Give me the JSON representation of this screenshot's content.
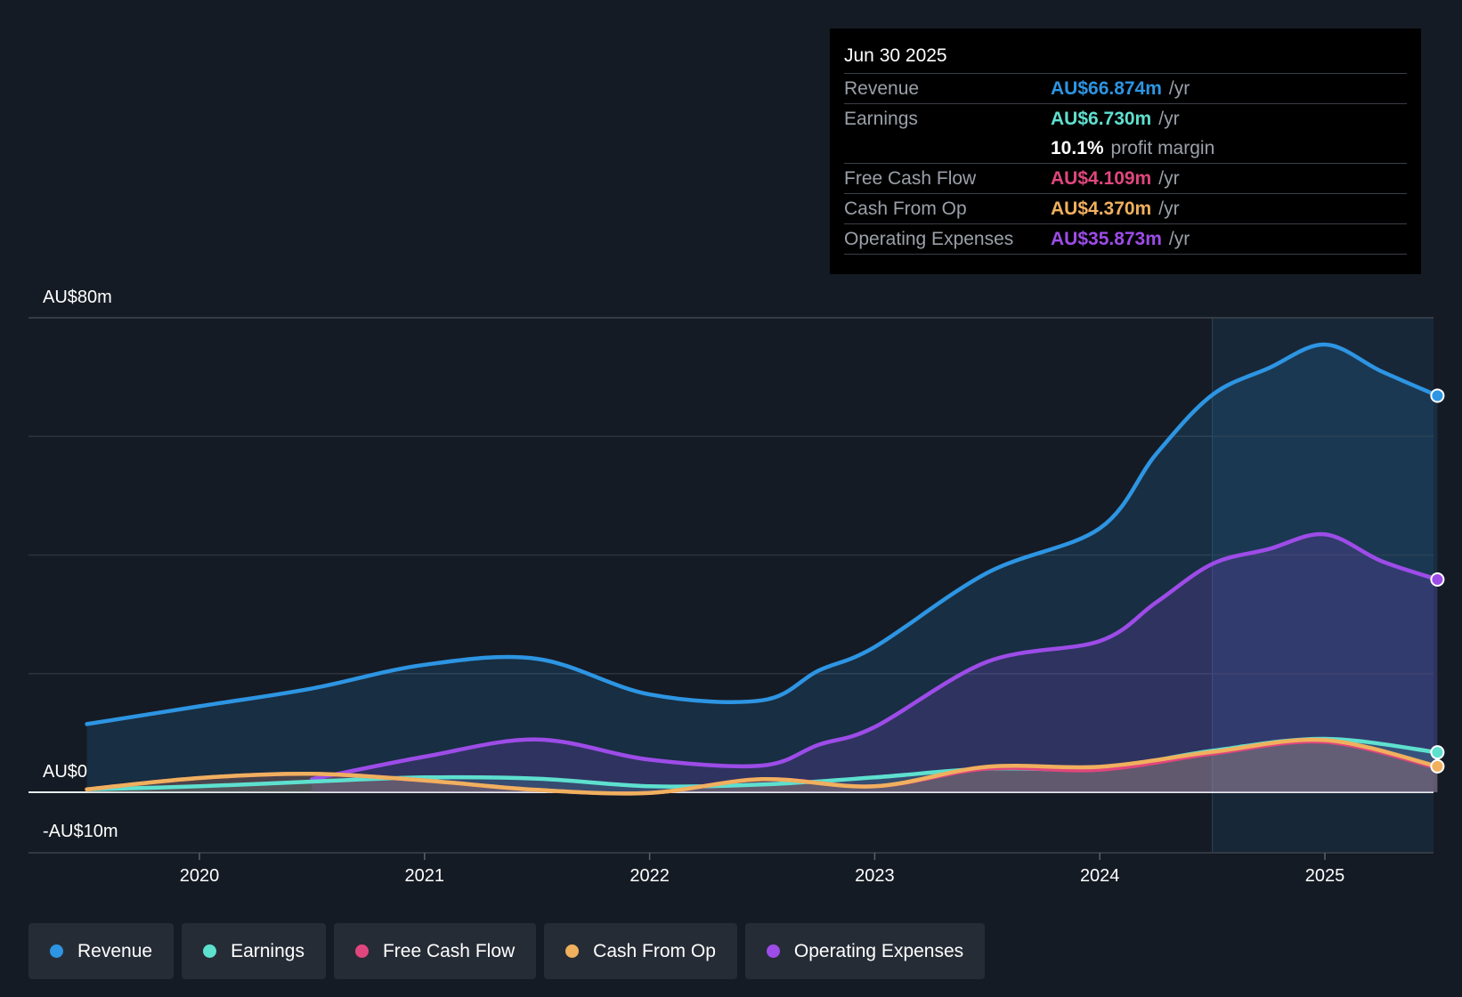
{
  "chart_data": {
    "type": "area",
    "title": "",
    "xlabel": "",
    "ylabel": "",
    "ylim": [
      -10,
      80
    ],
    "y_tick_labels": {
      "top": "AU$80m",
      "zero": "AU$0",
      "bottom": "-AU$10m"
    },
    "x_ticks": [
      2020,
      2021,
      2022,
      2023,
      2024,
      2025
    ],
    "x_tick_labels": [
      "2020",
      "2021",
      "2022",
      "2023",
      "2024",
      "2025"
    ],
    "xlim": [
      2019.24,
      2025.5
    ],
    "highlight_start": 2024.5,
    "series": [
      {
        "key": "revenue",
        "name": "Revenue",
        "color": "#2d95e3",
        "fill": true,
        "points": [
          [
            2019.5,
            11.5
          ],
          [
            2020.0,
            14.5
          ],
          [
            2020.5,
            17.5
          ],
          [
            2021.0,
            21.5
          ],
          [
            2021.5,
            22.5
          ],
          [
            2022.0,
            16.5
          ],
          [
            2022.5,
            15.5
          ],
          [
            2022.75,
            20.5
          ],
          [
            2023.0,
            24.5
          ],
          [
            2023.5,
            37.0
          ],
          [
            2024.0,
            44.5
          ],
          [
            2024.25,
            57.0
          ],
          [
            2024.5,
            67.0
          ],
          [
            2024.75,
            71.5
          ],
          [
            2025.0,
            75.5
          ],
          [
            2025.25,
            71.0
          ],
          [
            2025.5,
            66.874
          ]
        ]
      },
      {
        "key": "opex",
        "name": "Operating Expenses",
        "color": "#9d4ce8",
        "fill": true,
        "points": [
          [
            2020.5,
            2.2
          ],
          [
            2021.0,
            6.0
          ],
          [
            2021.5,
            8.9
          ],
          [
            2022.0,
            5.5
          ],
          [
            2022.5,
            4.5
          ],
          [
            2022.75,
            8.0
          ],
          [
            2023.0,
            11.0
          ],
          [
            2023.5,
            22.0
          ],
          [
            2024.0,
            25.5
          ],
          [
            2024.25,
            32.0
          ],
          [
            2024.5,
            38.5
          ],
          [
            2024.75,
            41.0
          ],
          [
            2025.0,
            43.5
          ],
          [
            2025.25,
            39.0
          ],
          [
            2025.5,
            35.873
          ]
        ]
      },
      {
        "key": "earnings",
        "name": "Earnings",
        "color": "#5ee0cf",
        "fill": true,
        "points": [
          [
            2019.5,
            0.5
          ],
          [
            2020.0,
            1.0
          ],
          [
            2020.5,
            1.8
          ],
          [
            2021.0,
            2.5
          ],
          [
            2021.5,
            2.3
          ],
          [
            2022.0,
            1.0
          ],
          [
            2022.5,
            1.3
          ],
          [
            2023.0,
            2.5
          ],
          [
            2023.5,
            4.0
          ],
          [
            2024.0,
            4.0
          ],
          [
            2024.5,
            7.0
          ],
          [
            2025.0,
            9.0
          ],
          [
            2025.5,
            6.73
          ]
        ]
      },
      {
        "key": "fcf",
        "name": "Free Cash Flow",
        "color": "#e0467d",
        "fill": true,
        "points": [
          [
            2019.5,
            0.5
          ],
          [
            2020.0,
            2.4
          ],
          [
            2020.5,
            3.1
          ],
          [
            2021.0,
            2.0
          ],
          [
            2021.5,
            0.4
          ],
          [
            2022.0,
            -0.1
          ],
          [
            2022.5,
            2.2
          ],
          [
            2023.0,
            1.0
          ],
          [
            2023.5,
            4.0
          ],
          [
            2024.0,
            3.8
          ],
          [
            2024.5,
            6.5
          ],
          [
            2025.0,
            8.5
          ],
          [
            2025.5,
            4.109
          ]
        ]
      },
      {
        "key": "cfo",
        "name": "Cash From Op",
        "color": "#f0b05e",
        "fill": true,
        "points": [
          [
            2019.5,
            0.5
          ],
          [
            2020.0,
            2.4
          ],
          [
            2020.5,
            3.1
          ],
          [
            2021.0,
            2.0
          ],
          [
            2021.5,
            0.4
          ],
          [
            2022.0,
            -0.1
          ],
          [
            2022.5,
            2.2
          ],
          [
            2023.0,
            1.0
          ],
          [
            2023.5,
            4.3
          ],
          [
            2024.0,
            4.3
          ],
          [
            2024.5,
            6.8
          ],
          [
            2025.0,
            8.8
          ],
          [
            2025.5,
            4.37
          ]
        ]
      }
    ]
  },
  "tooltip": {
    "date": "Jun 30 2025",
    "rows": [
      {
        "label": "Revenue",
        "value": "AU$66.874m",
        "unit": "/yr",
        "color": "#2d95e3"
      },
      {
        "label": "Earnings",
        "value": "AU$6.730m",
        "unit": "/yr",
        "color": "#5ee0cf"
      },
      {
        "label": "",
        "value": "10.1%",
        "unit": "profit margin",
        "color": "#ffffff"
      },
      {
        "label": "Free Cash Flow",
        "value": "AU$4.109m",
        "unit": "/yr",
        "color": "#e0467d"
      },
      {
        "label": "Cash From Op",
        "value": "AU$4.370m",
        "unit": "/yr",
        "color": "#f0b05e"
      },
      {
        "label": "Operating Expenses",
        "value": "AU$35.873m",
        "unit": "/yr",
        "color": "#9d4ce8"
      }
    ]
  },
  "legend": [
    {
      "label": "Revenue",
      "color": "#2d95e3"
    },
    {
      "label": "Earnings",
      "color": "#5ee0cf"
    },
    {
      "label": "Free Cash Flow",
      "color": "#e0467d"
    },
    {
      "label": "Cash From Op",
      "color": "#f0b05e"
    },
    {
      "label": "Operating Expenses",
      "color": "#9d4ce8"
    }
  ]
}
